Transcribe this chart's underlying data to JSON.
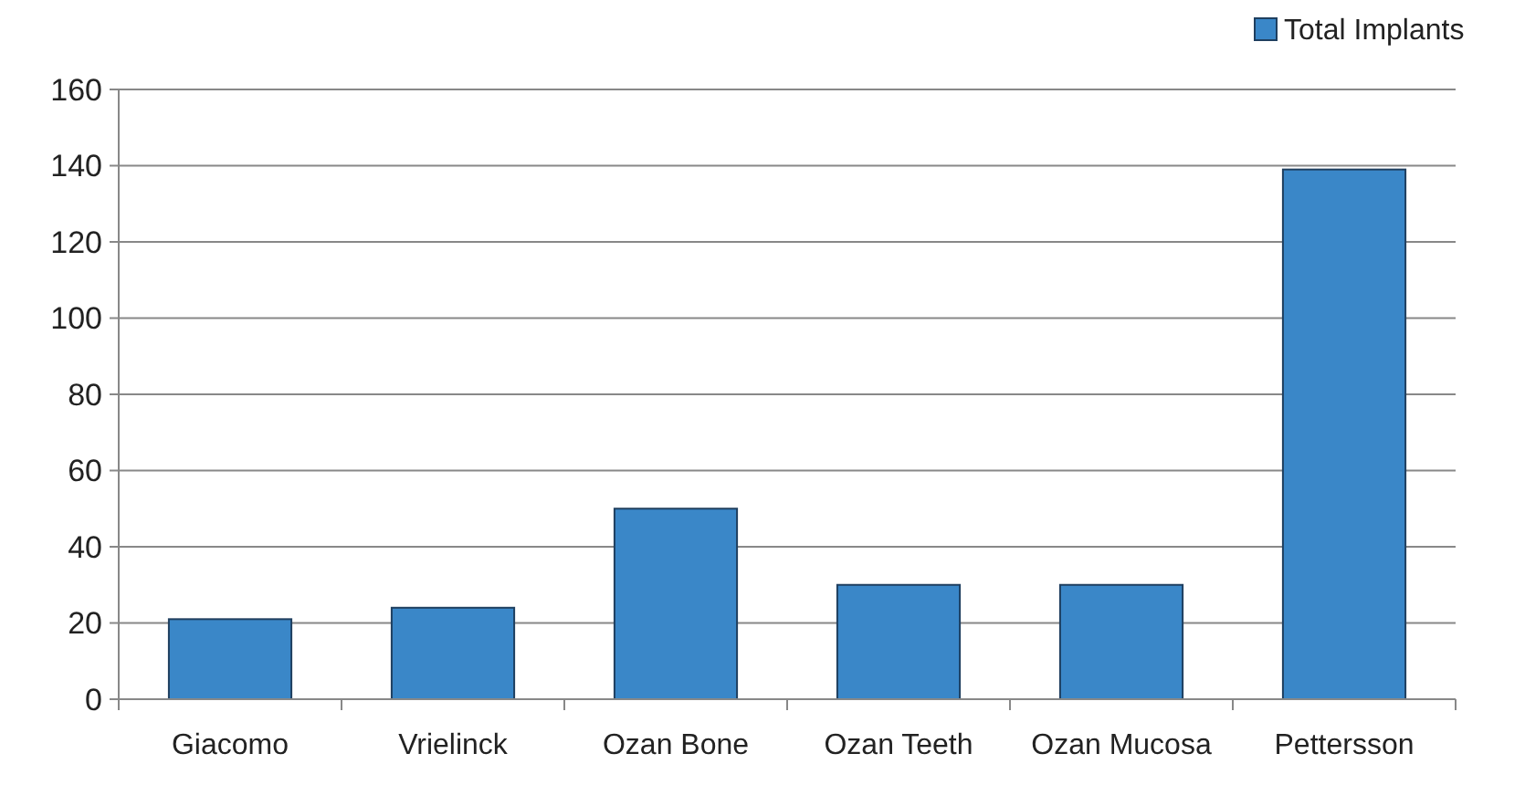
{
  "chart_data": {
    "type": "bar",
    "categories": [
      "Giacomo",
      "Vrielinck",
      "Ozan Bone",
      "Ozan Teeth",
      "Ozan Mucosa",
      "Pettersson"
    ],
    "series": [
      {
        "name": "Total Implants",
        "color": "#3a87c8",
        "values": [
          21,
          24,
          50,
          30,
          30,
          139
        ]
      }
    ],
    "ylim": [
      0,
      160
    ],
    "yticks": [
      0,
      20,
      40,
      60,
      80,
      100,
      120,
      140,
      160
    ],
    "grid": "y",
    "legend": "top right"
  }
}
